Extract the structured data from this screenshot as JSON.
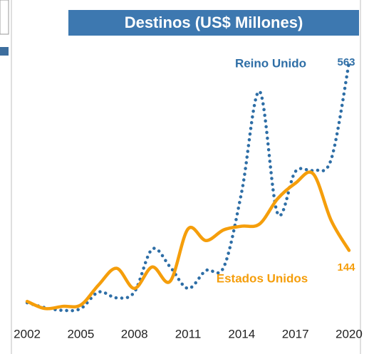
{
  "chart_data": {
    "type": "line",
    "title": "Destinos (US$ Millones)",
    "x": [
      2002,
      2003,
      2004,
      2005,
      2006,
      2007,
      2008,
      2009,
      2010,
      2011,
      2012,
      2013,
      2014,
      2015,
      2016,
      2017,
      2018,
      2019,
      2020
    ],
    "series": [
      {
        "name": "Reino Unido",
        "color": "#2e6ea6",
        "style": "dotted",
        "values": [
          27,
          16,
          10,
          14,
          51,
          38,
          51,
          147,
          107,
          59,
          99,
          107,
          275,
          499,
          227,
          320,
          323,
          347,
          563
        ]
      },
      {
        "name": "Estados Unidos",
        "color": "#f59e0b",
        "style": "solid",
        "values": [
          30,
          14,
          19,
          22,
          67,
          104,
          59,
          107,
          75,
          192,
          166,
          190,
          198,
          203,
          259,
          294,
          315,
          211,
          144
        ]
      }
    ],
    "xlim": [
      2001.2,
      2020.6
    ],
    "xticks": [
      2002,
      2005,
      2008,
      2011,
      2014,
      2017,
      2020
    ],
    "ylim": [
      0,
      600
    ]
  }
}
